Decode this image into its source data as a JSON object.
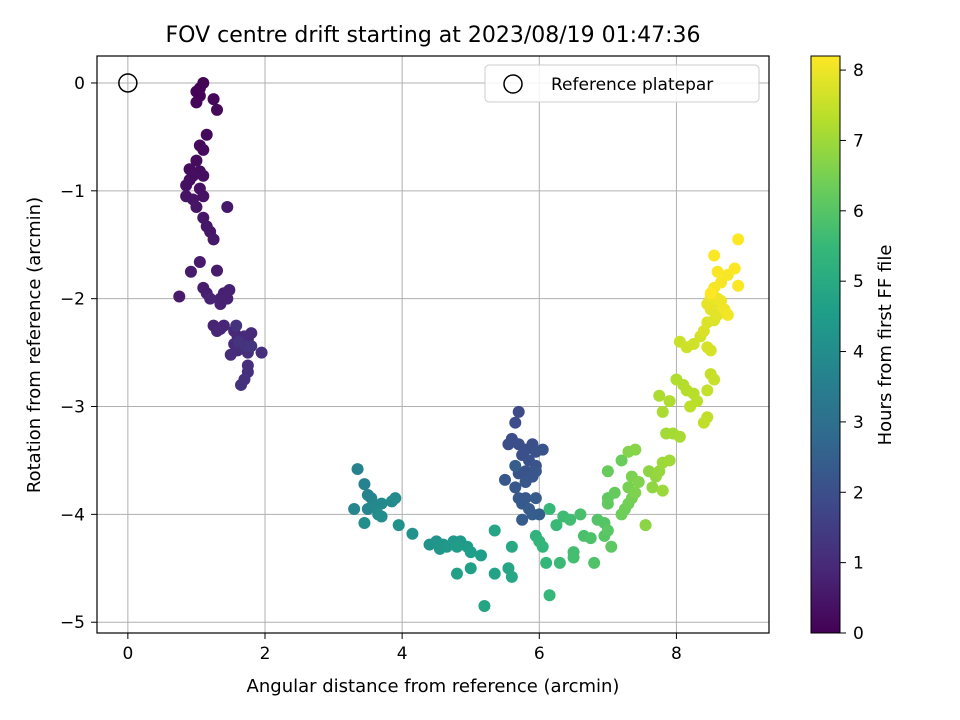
{
  "chart_data": {
    "type": "scatter",
    "title": "FOV centre drift starting at 2023/08/19 01:47:36",
    "xlabel": "Angular distance from reference (arcmin)",
    "ylabel": "Rotation from reference (arcmin)",
    "xlim": [
      -0.45,
      9.35
    ],
    "ylim": [
      -5.1,
      0.25
    ],
    "xticks": [
      0,
      2,
      4,
      6,
      8
    ],
    "yticks": [
      0,
      -1,
      -2,
      -3,
      -4,
      -5
    ],
    "xtick_labels": [
      "0",
      "2",
      "4",
      "6",
      "8"
    ],
    "ytick_labels": [
      "0",
      "−1",
      "−2",
      "−3",
      "−4",
      "−5"
    ],
    "grid": true,
    "legend": {
      "placement": "top-right",
      "entries": [
        {
          "label": "Reference platepar",
          "marker": "open-circle",
          "x": 0,
          "y": 0
        }
      ]
    },
    "colorbar": {
      "label": "Hours from first FF file",
      "colormap": "viridis",
      "range": [
        0,
        8.2
      ],
      "ticks": [
        0,
        1,
        2,
        3,
        4,
        5,
        6,
        7,
        8
      ],
      "tick_labels": [
        "0",
        "1",
        "2",
        "3",
        "4",
        "5",
        "6",
        "7",
        "8"
      ]
    },
    "colormap_stops": [
      "#440154",
      "#482878",
      "#3e4989",
      "#31688e",
      "#26828e",
      "#1f9e89",
      "#35b779",
      "#6ece58",
      "#b5de2b",
      "#fde725"
    ],
    "points": [
      [
        1.05,
        -0.05,
        0.05
      ],
      [
        1.1,
        0.0,
        0.06
      ],
      [
        1.0,
        -0.08,
        0.08
      ],
      [
        1.05,
        -0.12,
        0.1
      ],
      [
        1.0,
        -0.18,
        0.12
      ],
      [
        1.25,
        -0.15,
        0.14
      ],
      [
        1.3,
        -0.25,
        0.16
      ],
      [
        1.15,
        -0.48,
        0.18
      ],
      [
        1.05,
        -0.58,
        0.2
      ],
      [
        1.1,
        -0.62,
        0.22
      ],
      [
        1.0,
        -0.72,
        0.24
      ],
      [
        0.9,
        -0.8,
        0.26
      ],
      [
        1.05,
        -0.82,
        0.28
      ],
      [
        0.95,
        -0.86,
        0.3
      ],
      [
        0.9,
        -0.9,
        0.32
      ],
      [
        1.1,
        -0.86,
        0.34
      ],
      [
        0.85,
        -0.95,
        0.36
      ],
      [
        1.05,
        -0.98,
        0.38
      ],
      [
        1.1,
        -1.05,
        0.4
      ],
      [
        0.85,
        -1.05,
        0.42
      ],
      [
        0.95,
        -1.08,
        0.44
      ],
      [
        1.0,
        -1.15,
        0.46
      ],
      [
        1.1,
        -1.25,
        0.48
      ],
      [
        1.15,
        -1.33,
        0.5
      ],
      [
        1.2,
        -1.38,
        0.52
      ],
      [
        1.45,
        -1.15,
        0.54
      ],
      [
        1.25,
        -1.45,
        0.56
      ],
      [
        1.05,
        -1.66,
        0.58
      ],
      [
        0.92,
        -1.75,
        0.6
      ],
      [
        1.3,
        -1.74,
        0.62
      ],
      [
        0.75,
        -1.98,
        0.64
      ],
      [
        1.1,
        -1.9,
        0.66
      ],
      [
        1.15,
        -1.95,
        0.68
      ],
      [
        1.4,
        -1.95,
        0.7
      ],
      [
        1.35,
        -2.0,
        0.72
      ],
      [
        1.48,
        -1.92,
        0.74
      ],
      [
        1.35,
        -2.05,
        0.76
      ],
      [
        1.45,
        -2.0,
        0.78
      ],
      [
        1.2,
        -2.0,
        0.8
      ],
      [
        1.25,
        -2.25,
        0.82
      ],
      [
        1.35,
        -2.28,
        0.84
      ],
      [
        1.4,
        -2.25,
        0.86
      ],
      [
        1.3,
        -2.3,
        0.88
      ],
      [
        1.55,
        -2.3,
        0.9
      ],
      [
        1.6,
        -2.35,
        0.92
      ],
      [
        1.75,
        -2.38,
        0.94
      ],
      [
        1.7,
        -2.35,
        0.96
      ],
      [
        1.8,
        -2.32,
        0.98
      ],
      [
        1.55,
        -2.42,
        1.0
      ],
      [
        1.65,
        -2.45,
        1.02
      ],
      [
        1.5,
        -2.52,
        1.04
      ],
      [
        1.6,
        -2.48,
        1.06
      ],
      [
        1.75,
        -2.5,
        1.08
      ],
      [
        1.95,
        -2.5,
        1.1
      ],
      [
        1.75,
        -2.62,
        1.12
      ],
      [
        1.75,
        -2.68,
        1.14
      ],
      [
        1.7,
        -2.75,
        1.16
      ],
      [
        1.65,
        -2.8,
        1.18
      ],
      [
        1.58,
        -2.25,
        1.2
      ],
      [
        1.62,
        -2.4,
        1.22
      ],
      [
        1.72,
        -2.44,
        1.24
      ],
      [
        1.8,
        -2.44,
        1.26
      ],
      [
        5.7,
        -3.05,
        1.9
      ],
      [
        5.65,
        -3.15,
        1.92
      ],
      [
        5.6,
        -3.3,
        1.94
      ],
      [
        5.55,
        -3.35,
        1.96
      ],
      [
        5.7,
        -3.35,
        1.98
      ],
      [
        5.8,
        -3.4,
        2.0
      ],
      [
        5.75,
        -3.45,
        2.02
      ],
      [
        5.9,
        -3.35,
        2.04
      ],
      [
        5.95,
        -3.42,
        2.06
      ],
      [
        6.05,
        -3.4,
        2.08
      ],
      [
        5.85,
        -3.5,
        2.1
      ],
      [
        5.95,
        -3.55,
        2.12
      ],
      [
        5.8,
        -3.6,
        2.14
      ],
      [
        5.7,
        -3.62,
        2.16
      ],
      [
        5.9,
        -3.65,
        2.18
      ],
      [
        5.95,
        -3.6,
        2.2
      ],
      [
        5.5,
        -3.68,
        2.22
      ],
      [
        5.65,
        -3.75,
        2.24
      ],
      [
        5.8,
        -3.7,
        2.26
      ],
      [
        5.7,
        -3.85,
        2.28
      ],
      [
        5.8,
        -3.85,
        2.3
      ],
      [
        5.75,
        -3.9,
        2.32
      ],
      [
        5.95,
        -3.85,
        2.34
      ],
      [
        5.85,
        -3.95,
        2.36
      ],
      [
        5.75,
        -4.05,
        2.38
      ],
      [
        5.9,
        -4.0,
        2.4
      ],
      [
        6.0,
        -4.0,
        2.42
      ],
      [
        5.65,
        -3.55,
        2.44
      ],
      [
        3.35,
        -3.58,
        3.6
      ],
      [
        3.45,
        -3.72,
        3.64
      ],
      [
        3.5,
        -3.82,
        3.68
      ],
      [
        3.55,
        -3.85,
        3.72
      ],
      [
        3.3,
        -3.95,
        3.76
      ],
      [
        3.5,
        -3.95,
        3.8
      ],
      [
        3.6,
        -3.92,
        3.84
      ],
      [
        3.7,
        -3.9,
        3.88
      ],
      [
        3.85,
        -3.88,
        3.92
      ],
      [
        3.9,
        -3.85,
        3.96
      ],
      [
        3.65,
        -4.0,
        4.0
      ],
      [
        3.7,
        -4.02,
        4.04
      ],
      [
        3.45,
        -4.08,
        4.08
      ],
      [
        3.95,
        -4.1,
        4.12
      ],
      [
        4.15,
        -4.18,
        4.16
      ],
      [
        4.4,
        -4.28,
        4.2
      ],
      [
        4.5,
        -4.25,
        4.24
      ],
      [
        4.6,
        -4.28,
        4.28
      ],
      [
        4.55,
        -4.32,
        4.32
      ],
      [
        4.65,
        -4.3,
        4.36
      ],
      [
        4.75,
        -4.25,
        4.4
      ],
      [
        4.85,
        -4.25,
        4.44
      ],
      [
        4.8,
        -4.3,
        4.48
      ],
      [
        4.95,
        -4.3,
        4.52
      ],
      [
        5.0,
        -4.35,
        4.56
      ],
      [
        5.15,
        -4.38,
        4.6
      ],
      [
        5.0,
        -4.5,
        4.64
      ],
      [
        4.8,
        -4.55,
        4.68
      ],
      [
        5.35,
        -4.55,
        4.72
      ],
      [
        5.2,
        -4.85,
        4.76
      ],
      [
        5.35,
        -4.15,
        4.8
      ],
      [
        5.55,
        -4.5,
        4.84
      ],
      [
        5.6,
        -4.58,
        4.88
      ],
      [
        5.6,
        -4.3,
        4.92
      ],
      [
        5.95,
        -4.2,
        5.3
      ],
      [
        6.0,
        -4.25,
        5.34
      ],
      [
        6.05,
        -4.3,
        5.38
      ],
      [
        6.1,
        -4.45,
        5.42
      ],
      [
        6.15,
        -4.75,
        5.46
      ],
      [
        6.15,
        -3.95,
        5.5
      ],
      [
        6.25,
        -4.1,
        5.54
      ],
      [
        6.3,
        -4.45,
        5.58
      ],
      [
        6.35,
        -4.02,
        5.62
      ],
      [
        6.45,
        -4.05,
        5.66
      ],
      [
        6.5,
        -4.35,
        5.7
      ],
      [
        6.5,
        -4.4,
        5.74
      ],
      [
        6.6,
        -4.0,
        5.78
      ],
      [
        6.65,
        -4.2,
        5.82
      ],
      [
        6.75,
        -4.22,
        5.86
      ],
      [
        6.8,
        -4.45,
        5.9
      ],
      [
        6.85,
        -4.05,
        5.94
      ],
      [
        6.95,
        -4.08,
        5.98
      ],
      [
        6.95,
        -4.2,
        6.02
      ],
      [
        7.0,
        -4.15,
        6.06
      ],
      [
        7.05,
        -4.3,
        6.1
      ],
      [
        7.0,
        -3.85,
        6.14
      ],
      [
        7.0,
        -3.9,
        6.18
      ],
      [
        7.1,
        -3.8,
        6.22
      ],
      [
        7.0,
        -3.6,
        6.26
      ],
      [
        7.2,
        -3.5,
        6.3
      ],
      [
        7.2,
        -4.0,
        6.34
      ],
      [
        7.25,
        -3.95,
        6.38
      ],
      [
        7.3,
        -3.9,
        6.42
      ],
      [
        7.35,
        -3.85,
        6.46
      ],
      [
        7.3,
        -3.75,
        6.5
      ],
      [
        7.35,
        -3.65,
        6.54
      ],
      [
        7.4,
        -3.8,
        6.58
      ],
      [
        7.45,
        -3.7,
        6.62
      ],
      [
        7.3,
        -3.42,
        6.66
      ],
      [
        7.4,
        -3.4,
        6.7
      ],
      [
        7.55,
        -4.1,
        6.74
      ],
      [
        7.6,
        -3.6,
        6.78
      ],
      [
        7.65,
        -3.75,
        6.82
      ],
      [
        7.7,
        -3.65,
        6.86
      ],
      [
        7.75,
        -3.6,
        6.9
      ],
      [
        7.8,
        -3.78,
        6.94
      ],
      [
        7.8,
        -3.52,
        6.98
      ],
      [
        7.9,
        -3.5,
        7.02
      ],
      [
        7.85,
        -3.25,
        7.05
      ],
      [
        7.95,
        -3.25,
        7.08
      ],
      [
        8.05,
        -3.28,
        7.11
      ],
      [
        7.8,
        -3.05,
        7.14
      ],
      [
        7.75,
        -2.9,
        7.17
      ],
      [
        7.9,
        -2.95,
        7.2
      ],
      [
        8.0,
        -2.75,
        7.23
      ],
      [
        8.1,
        -2.8,
        7.26
      ],
      [
        8.15,
        -2.85,
        7.29
      ],
      [
        8.25,
        -2.88,
        7.32
      ],
      [
        8.3,
        -2.95,
        7.35
      ],
      [
        8.2,
        -3.0,
        7.38
      ],
      [
        8.4,
        -3.15,
        7.41
      ],
      [
        8.45,
        -3.1,
        7.44
      ],
      [
        8.45,
        -2.85,
        7.47
      ],
      [
        8.5,
        -2.7,
        7.5
      ],
      [
        8.55,
        -2.75,
        7.53
      ],
      [
        8.05,
        -2.4,
        7.56
      ],
      [
        8.15,
        -2.45,
        7.59
      ],
      [
        8.25,
        -2.42,
        7.62
      ],
      [
        8.35,
        -2.35,
        7.65
      ],
      [
        8.45,
        -2.45,
        7.68
      ],
      [
        8.5,
        -2.48,
        7.71
      ],
      [
        8.4,
        -2.3,
        7.74
      ],
      [
        8.45,
        -2.22,
        7.77
      ],
      [
        8.55,
        -2.2,
        7.8
      ],
      [
        8.5,
        -2.1,
        7.83
      ],
      [
        8.6,
        -2.15,
        7.86
      ],
      [
        8.55,
        -2.05,
        7.89
      ],
      [
        8.45,
        -2.05,
        7.92
      ],
      [
        8.6,
        -2.0,
        7.95
      ],
      [
        8.5,
        -1.98,
        7.98
      ],
      [
        8.65,
        -2.02,
        8.01
      ],
      [
        8.7,
        -2.1,
        8.04
      ],
      [
        8.75,
        -2.15,
        8.07
      ],
      [
        8.55,
        -1.9,
        8.09
      ],
      [
        8.65,
        -1.85,
        8.11
      ],
      [
        8.75,
        -1.78,
        8.13
      ],
      [
        8.6,
        -1.75,
        8.15
      ],
      [
        8.55,
        -1.6,
        8.17
      ],
      [
        8.85,
        -1.72,
        8.18
      ],
      [
        8.9,
        -1.88,
        8.19
      ],
      [
        8.9,
        -1.45,
        8.2
      ],
      [
        8.5,
        -1.95,
        8.2
      ]
    ]
  }
}
